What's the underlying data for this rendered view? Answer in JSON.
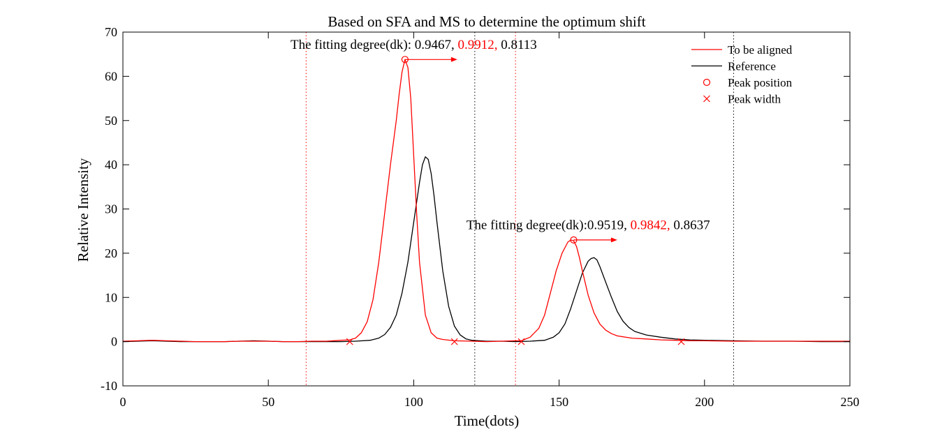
{
  "colors": {
    "aligned": "#ff0000",
    "reference": "#000000",
    "axis": "#000000",
    "background": "#ffffff"
  },
  "chart_data": {
    "type": "line",
    "title": "Based on SFA and MS to determine the optimum shift",
    "xlabel": "Time(dots)",
    "ylabel": "Relative Intensity",
    "xlim": [
      0,
      250
    ],
    "ylim": [
      -10,
      70
    ],
    "xticks": [
      0,
      50,
      100,
      150,
      200,
      250
    ],
    "yticks": [
      -10,
      0,
      10,
      20,
      30,
      40,
      50,
      60,
      70
    ],
    "grid": false,
    "legend": {
      "position": "top-right",
      "entries": [
        {
          "label": "To be aligned",
          "marker": "line",
          "color": "#ff0000"
        },
        {
          "label": "Reference",
          "marker": "line",
          "color": "#000000"
        },
        {
          "label": "Peak position",
          "marker": "circle",
          "color": "#ff0000"
        },
        {
          "label": "Peak width",
          "marker": "x",
          "color": "#ff0000"
        }
      ]
    },
    "series": [
      {
        "name": "To be aligned",
        "color": "#ff0000",
        "x": [
          0,
          5,
          10,
          15,
          20,
          25,
          30,
          35,
          40,
          45,
          50,
          55,
          60,
          65,
          70,
          75,
          78,
          80,
          82,
          84,
          86,
          88,
          90,
          92,
          94,
          95,
          96,
          97,
          98,
          99,
          100,
          101,
          102,
          104,
          106,
          108,
          110,
          114,
          120,
          125,
          130,
          135,
          137,
          140,
          143,
          145,
          147,
          149,
          151,
          153,
          154,
          155,
          156,
          157,
          158,
          160,
          162,
          164,
          166,
          168,
          170,
          175,
          180,
          185,
          190,
          195,
          200,
          210,
          220,
          230,
          240,
          250
        ],
        "y": [
          0.1,
          0.2,
          0.3,
          0.2,
          0.1,
          0.0,
          0.0,
          0.0,
          0.1,
          0.1,
          0.1,
          0.0,
          0.0,
          0.1,
          0.1,
          0.3,
          0.4,
          0.8,
          2.0,
          4.5,
          9.5,
          18,
          29,
          40,
          50,
          56,
          61,
          63.8,
          62,
          55,
          42,
          29,
          18,
          6,
          2,
          0.8,
          0.5,
          0.2,
          0.1,
          0.0,
          0.1,
          0.2,
          0.2,
          1.0,
          3.0,
          6.0,
          11,
          16,
          20,
          22.5,
          23,
          22.8,
          21.5,
          19,
          16,
          10.5,
          6.5,
          4,
          2.6,
          1.8,
          1.3,
          0.8,
          0.6,
          0.4,
          0.3,
          0.2,
          0.2,
          0.1,
          0.1,
          0.1,
          0.1,
          0.1
        ]
      },
      {
        "name": "Reference",
        "color": "#000000",
        "x": [
          0,
          5,
          10,
          15,
          20,
          25,
          30,
          35,
          40,
          45,
          50,
          55,
          60,
          65,
          70,
          75,
          80,
          85,
          88,
          90,
          92,
          94,
          96,
          98,
          100,
          102,
          103,
          104,
          105,
          106,
          107,
          108,
          110,
          112,
          114,
          116,
          118,
          120,
          125,
          130,
          135,
          140,
          145,
          148,
          150,
          152,
          154,
          156,
          158,
          160,
          161,
          162,
          163,
          164,
          166,
          168,
          170,
          172,
          174,
          176,
          180,
          185,
          190,
          195,
          200,
          210,
          220,
          230,
          240,
          250
        ],
        "y": [
          0.0,
          0.1,
          0.2,
          0.1,
          0.0,
          0.0,
          0.0,
          0.0,
          0.1,
          0.2,
          0.1,
          0.0,
          0.0,
          0.0,
          0.0,
          0.0,
          0.1,
          0.3,
          0.8,
          1.6,
          3.2,
          6.0,
          11,
          18,
          27,
          36,
          40,
          41.8,
          41.2,
          38,
          33,
          27,
          16,
          8,
          3.5,
          1.5,
          0.6,
          0.3,
          0.1,
          0.1,
          0.0,
          0.1,
          0.3,
          1.0,
          2.0,
          4.0,
          7.5,
          11.5,
          15.5,
          18.2,
          18.8,
          19,
          18.5,
          17,
          13.5,
          10,
          6.8,
          4.6,
          3.2,
          2.3,
          1.5,
          1.0,
          0.6,
          0.4,
          0.3,
          0.2,
          0.1,
          0.1,
          0.0,
          0.0
        ]
      }
    ],
    "peak_positions": [
      {
        "x": 97,
        "y": 63.8,
        "color": "#ff0000"
      },
      {
        "x": 155,
        "y": 23,
        "color": "#ff0000"
      }
    ],
    "peak_widths": [
      {
        "x": 78,
        "y": 0,
        "color": "#ff0000"
      },
      {
        "x": 114,
        "y": 0,
        "color": "#ff0000"
      },
      {
        "x": 137,
        "y": 0,
        "color": "#ff0000"
      },
      {
        "x": 192,
        "y": 0,
        "color": "#ff0000"
      }
    ],
    "vlines": [
      {
        "x": 63,
        "color": "#ff0000",
        "style": "dotted"
      },
      {
        "x": 121,
        "color": "#000000",
        "style": "dotted"
      },
      {
        "x": 135,
        "color": "#ff0000",
        "style": "dotted"
      },
      {
        "x": 210,
        "color": "#000000",
        "style": "dotted"
      }
    ],
    "shift_arrows": [
      {
        "x_start": 97,
        "x_end": 115,
        "y": 63.8,
        "color": "#ff0000"
      },
      {
        "x_start": 155,
        "x_end": 170,
        "y": 23,
        "color": "#ff0000"
      }
    ],
    "annotations": [
      {
        "x": 100,
        "y": 66.2,
        "parts": [
          {
            "text": "The fitting degree(dk): 0.9467, ",
            "color": "#000000"
          },
          {
            "text": "0.9912,",
            "color": "#ff0000"
          },
          {
            "text": " 0.8113",
            "color": "#000000"
          }
        ]
      },
      {
        "x": 160,
        "y": 25.4,
        "parts": [
          {
            "text": "The fitting degree(dk):0.9519, ",
            "color": "#000000"
          },
          {
            "text": "0.9842,",
            "color": "#ff0000"
          },
          {
            "text": " 0.8637",
            "color": "#000000"
          }
        ]
      }
    ]
  }
}
